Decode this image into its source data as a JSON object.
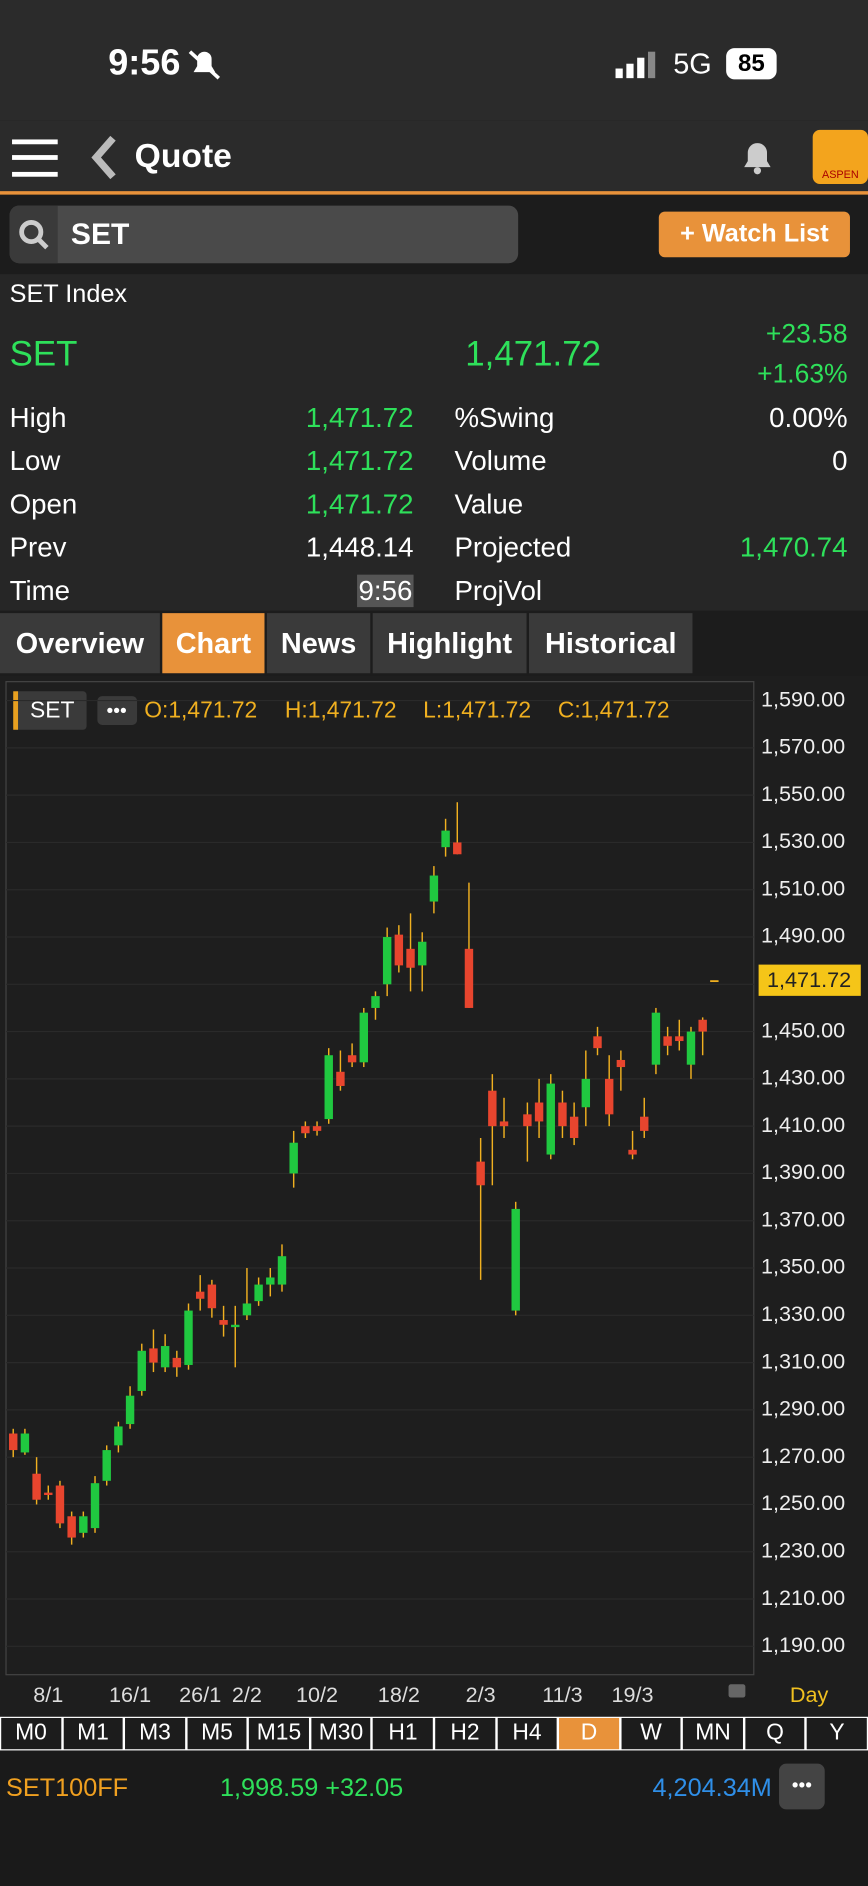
{
  "status_bar": {
    "time": "9:56",
    "network": "5G",
    "battery": "85"
  },
  "nav": {
    "title": "Quote",
    "logo": "ASPEN"
  },
  "search": {
    "query": "SET",
    "button": "+ Watch List"
  },
  "quote": {
    "name": "SET Index",
    "symbol": "SET",
    "last": "1,471.72",
    "change": "+23.58",
    "change_pct": "+1.63%",
    "rows": [
      {
        "label": "High",
        "value": "1,471.72",
        "label2": "%Swing",
        "value2": "0.00%"
      },
      {
        "label": "Low",
        "value": "1,471.72",
        "label2": "Volume",
        "value2": "0"
      },
      {
        "label": "Open",
        "value": "1,471.72",
        "label2": "Value"
      },
      {
        "label": "Prev",
        "value": "1,448.14",
        "label2": "Projected",
        "value2": "1,470.74"
      },
      {
        "label": "Time",
        "value": "9:56",
        "label2": "ProjVol"
      }
    ]
  },
  "tabs": [
    "Overview",
    "Chart",
    "News",
    "Highlight",
    "Historical"
  ],
  "chart_data": {
    "type": "candlestick",
    "period": "Day",
    "ohlc_legend": [
      "O:1,471.72",
      "H:1,471.72",
      "L:1,471.72",
      "C:1,471.72"
    ],
    "categories": [
      null,
      null,
      null,
      "8/1",
      null,
      null,
      null,
      null,
      null,
      null,
      "16/1",
      null,
      null,
      null,
      null,
      null,
      "26/1",
      null,
      null,
      null,
      "2/2",
      null,
      null,
      null,
      null,
      null,
      "10/2",
      null,
      null,
      null,
      null,
      null,
      null,
      "18/2",
      null,
      null,
      null,
      null,
      null,
      null,
      "2/3",
      null,
      null,
      null,
      null,
      null,
      null,
      "11/3",
      null,
      null,
      null,
      null,
      null,
      "19/3",
      null,
      null,
      null,
      null,
      null,
      null,
      null
    ],
    "up_color": "#20c840",
    "down_color": "#e8452e",
    "wick_color": "#f0b020",
    "series": [
      {
        "name": "SET",
        "open": [
          1280,
          1272,
          1263,
          1255,
          1258,
          1245,
          1238,
          1240,
          1260,
          1275,
          1284,
          1298,
          1316,
          1308,
          1312,
          1309,
          1340,
          1343,
          1328,
          1325,
          1330,
          1336,
          1343,
          1343,
          1390,
          1410,
          1410,
          1413,
          1433,
          1440,
          1437,
          1460,
          1470,
          1491,
          1485,
          1478,
          1505,
          1528,
          1530,
          1485,
          1395,
          1425,
          1412,
          1332,
          1415,
          1420,
          1398,
          1420,
          1414,
          1418,
          1448,
          1430,
          1438,
          1400,
          1414,
          1436,
          1448,
          1448,
          1436,
          1455,
          1471.72
        ],
        "high": [
          1282,
          1282,
          1270,
          1258,
          1260,
          1247,
          1247,
          1262,
          1275,
          1285,
          1300,
          1318,
          1324,
          1322,
          1315,
          1335,
          1347,
          1345,
          1334,
          1334,
          1350,
          1346,
          1350,
          1360,
          1408,
          1412,
          1412,
          1443,
          1442,
          1445,
          1460,
          1467,
          1494,
          1495,
          1500,
          1492,
          1520,
          1540,
          1547,
          1513,
          1405,
          1432,
          1422,
          1378,
          1420,
          1430,
          1432,
          1425,
          1420,
          1442,
          1452,
          1440,
          1442,
          1408,
          1422,
          1460,
          1452,
          1455,
          1452,
          1456,
          1471.72
        ],
        "low": [
          1270,
          1271,
          1250,
          1252,
          1240,
          1233,
          1236,
          1238,
          1258,
          1272,
          1282,
          1296,
          1306,
          1306,
          1304,
          1307,
          1332,
          1329,
          1321,
          1308,
          1328,
          1334,
          1338,
          1340,
          1384,
          1405,
          1406,
          1411,
          1425,
          1435,
          1435,
          1455,
          1465,
          1475,
          1467,
          1467,
          1500,
          1524,
          1525,
          1460,
          1345,
          1385,
          1405,
          1330,
          1395,
          1405,
          1396,
          1405,
          1402,
          1410,
          1440,
          1410,
          1425,
          1396,
          1405,
          1432,
          1440,
          1442,
          1430,
          1440,
          1471.72
        ],
        "close": [
          1273,
          1280,
          1252,
          1254,
          1242,
          1236,
          1245,
          1259,
          1273,
          1283,
          1296,
          1315,
          1310,
          1317,
          1308,
          1332,
          1337,
          1333,
          1326,
          1326,
          1335,
          1343,
          1346,
          1355,
          1403,
          1407,
          1408,
          1440,
          1427,
          1437,
          1458,
          1465,
          1490,
          1478,
          1477,
          1488,
          1516,
          1535,
          1525,
          1460,
          1385,
          1410,
          1410,
          1375,
          1410,
          1412,
          1428,
          1410,
          1405,
          1430,
          1443,
          1415,
          1435,
          1398,
          1408,
          1458,
          1444,
          1446,
          1450,
          1450,
          1471.72
        ]
      }
    ],
    "last": {
      "value": 1471.72,
      "label": "1,471.72"
    },
    "ylim": [
      1178,
      1598
    ],
    "yticks": [
      {
        "value": 1590,
        "label": "1,590.00"
      },
      {
        "value": 1570,
        "label": "1,570.00"
      },
      {
        "value": 1550,
        "label": "1,550.00"
      },
      {
        "value": 1530,
        "label": "1,530.00"
      },
      {
        "value": 1510,
        "label": "1,510.00"
      },
      {
        "value": 1490,
        "label": "1,490.00"
      },
      {
        "value": 1470,
        "label": "1,470.00"
      },
      {
        "value": 1450,
        "label": "1,450.00"
      },
      {
        "value": 1430,
        "label": "1,430.00"
      },
      {
        "value": 1410,
        "label": "1,410.00"
      },
      {
        "value": 1390,
        "label": "1,390.00"
      },
      {
        "value": 1370,
        "label": "1,370.00"
      },
      {
        "value": 1350,
        "label": "1,350.00"
      },
      {
        "value": 1330,
        "label": "1,330.00"
      },
      {
        "value": 1310,
        "label": "1,310.00"
      },
      {
        "value": 1290,
        "label": "1,290.00"
      },
      {
        "value": 1270,
        "label": "1,270.00"
      },
      {
        "value": 1250,
        "label": "1,250.00"
      },
      {
        "value": 1230,
        "label": "1,230.00"
      },
      {
        "value": 1210,
        "label": "1,210.00"
      },
      {
        "value": 1190,
        "label": "1,190.00"
      }
    ],
    "grid": true
  },
  "timeframes": {
    "items": [
      "M0",
      "M1",
      "M3",
      "M5",
      "M15",
      "M30",
      "H1",
      "H2",
      "H4",
      "D",
      "W",
      "MN",
      "Q",
      "Y"
    ],
    "active": "D"
  },
  "ticker": {
    "symbol": "SET100FF",
    "price": "1,998.59 +32.05",
    "value": "4,204.34M"
  }
}
